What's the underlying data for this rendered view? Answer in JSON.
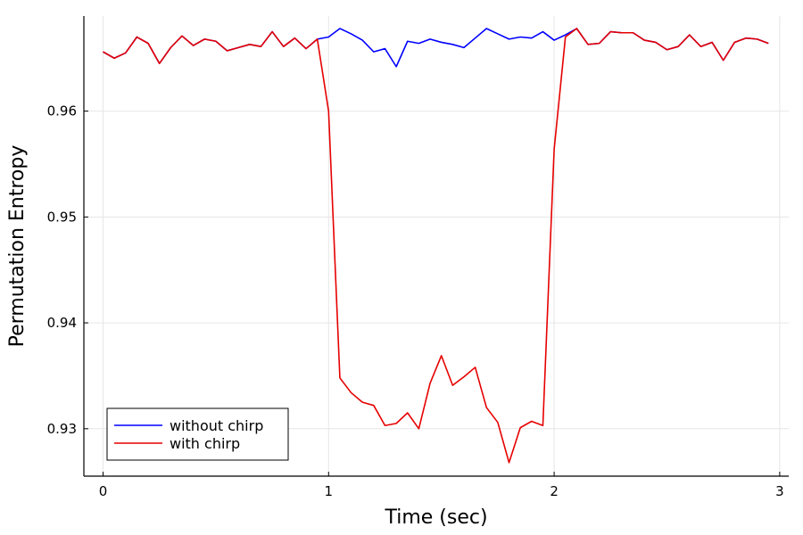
{
  "chart_data": {
    "type": "line",
    "title": "",
    "xlabel": "Time (sec)",
    "ylabel": "Permutation Entropy",
    "xlim": [
      -0.085,
      3.04
    ],
    "ylim": [
      0.92552,
      0.96898
    ],
    "xticks": [
      0,
      1,
      2,
      3
    ],
    "xtick_labels": [
      "0",
      "1",
      "2",
      "3"
    ],
    "yticks": [
      0.93,
      0.94,
      0.95,
      0.96
    ],
    "ytick_labels": [
      "0.93",
      "0.94",
      "0.95",
      "0.96"
    ],
    "grid": true,
    "legend_position": "bottom-left",
    "x": [
      0,
      0.05,
      0.1,
      0.15,
      0.2,
      0.25,
      0.3,
      0.35,
      0.4,
      0.45,
      0.5,
      0.55,
      0.6,
      0.65,
      0.7,
      0.75,
      0.8,
      0.85,
      0.9,
      0.95,
      1.0,
      1.05,
      1.1,
      1.15,
      1.2,
      1.25,
      1.3,
      1.35,
      1.4,
      1.45,
      1.5,
      1.55,
      1.6,
      1.65,
      1.7,
      1.75,
      1.8,
      1.85,
      1.9,
      1.95,
      2.0,
      2.05,
      2.1,
      2.15,
      2.2,
      2.25,
      2.3,
      2.35,
      2.4,
      2.45,
      2.5,
      2.55,
      2.6,
      2.65,
      2.7,
      2.75,
      2.8,
      2.85,
      2.9,
      2.95
    ],
    "series": [
      {
        "name": "without chirp",
        "color": "#0000ff",
        "values": [
          0.9656,
          0.965,
          0.9655,
          0.967,
          0.9664,
          0.9645,
          0.966,
          0.9671,
          0.9662,
          0.9668,
          0.9666,
          0.9657,
          0.966,
          0.9663,
          0.9661,
          0.9675,
          0.9661,
          0.9669,
          0.9659,
          0.9668,
          0.967,
          0.9678,
          0.9673,
          0.9667,
          0.9656,
          0.9659,
          0.9642,
          0.9666,
          0.9664,
          0.9668,
          0.9665,
          0.9663,
          0.966,
          0.9669,
          0.9678,
          0.9673,
          0.9668,
          0.967,
          0.9669,
          0.9675,
          0.9667,
          0.9672,
          0.9678,
          0.9663,
          0.9664,
          0.9675,
          0.9674,
          0.9674,
          0.9667,
          0.9665,
          0.9658,
          0.9661,
          0.9672,
          0.9661,
          0.9665,
          0.9648,
          0.9665,
          0.9669,
          0.9668,
          0.9664
        ]
      },
      {
        "name": "with chirp",
        "color": "#e60000",
        "values": [
          0.9656,
          0.965,
          0.9655,
          0.967,
          0.9664,
          0.9645,
          0.966,
          0.9671,
          0.9662,
          0.9668,
          0.9666,
          0.9657,
          0.966,
          0.9663,
          0.9661,
          0.9675,
          0.9661,
          0.9669,
          0.9659,
          0.9668,
          0.96,
          0.9348,
          0.9334,
          0.9325,
          0.9322,
          0.9303,
          0.9305,
          0.9315,
          0.93,
          0.9343,
          0.9369,
          0.9341,
          0.9349,
          0.9358,
          0.932,
          0.9306,
          0.9268,
          0.9301,
          0.9307,
          0.9303,
          0.9564,
          0.967,
          0.9678,
          0.9663,
          0.9664,
          0.9675,
          0.9674,
          0.9674,
          0.9667,
          0.9665,
          0.9658,
          0.9661,
          0.9672,
          0.9661,
          0.9665,
          0.9648,
          0.9665,
          0.9669,
          0.9668,
          0.9664
        ]
      }
    ]
  }
}
